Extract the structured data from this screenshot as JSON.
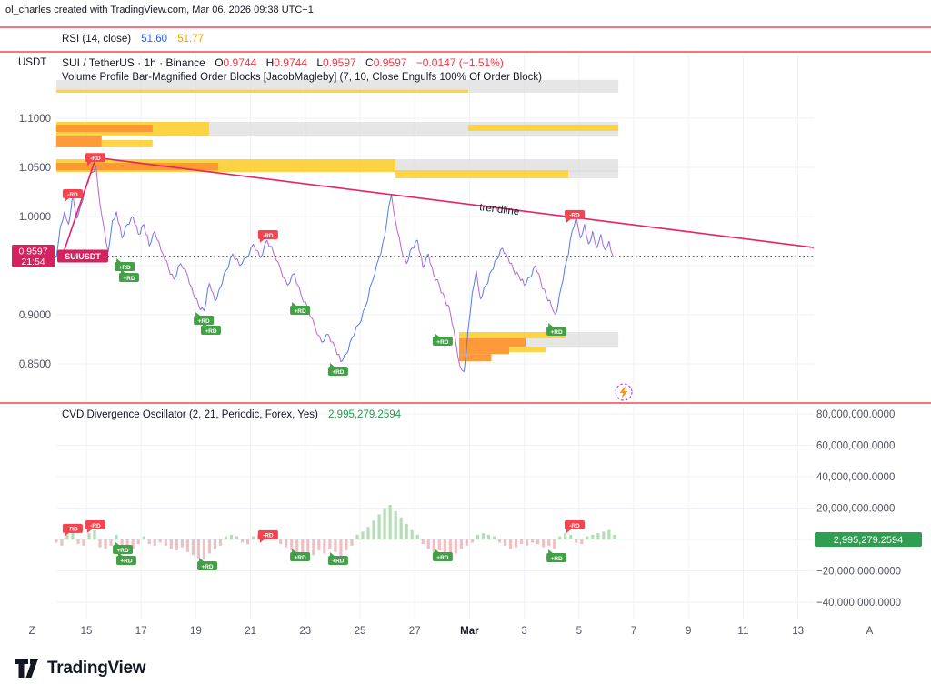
{
  "attribution": "ol_charles created with TradingView.com, Mar 06, 2026 09:38 UTC+1",
  "rsi": {
    "label": "RSI (14, close)",
    "value_main": "51.60",
    "value_signal": "51.77",
    "color_main": "#2962ff",
    "color_signal": "#f0a000"
  },
  "header": {
    "price_scale_currency": "USDT",
    "symbol_title": "SUI / TetherUS · 1h · Binance",
    "ohlc": {
      "o_label": "O",
      "o": "0.9744",
      "h_label": "H",
      "h": "0.9744",
      "l_label": "L",
      "l": "0.9597",
      "c_label": "C",
      "c": "0.9597",
      "change": "−0.0147 (−1.51%)"
    },
    "down_color": "#f23645"
  },
  "volume_profile_label": "Volume Profile Bar-Magnified Order Blocks [JacobMagleby] (7, 10, Close Engulfs 100% Of Order Block)",
  "cvd_legend": {
    "label": "CVD Divergence Oscillator (2, 21, Periodic, Forex, Yes)",
    "value": "2,995,279.2594",
    "value_color": "#1e9e4a"
  },
  "logo": {
    "text": "TradingView"
  },
  "chart_data": {
    "type": "candlestick",
    "title": "SUI/TetherUS 1h with Volume Profile Order Blocks and CVD Divergence Oscillator",
    "price_pane": {
      "ylim": [
        0.83,
        1.145
      ],
      "ylabel_values": [
        {
          "p": 1.1,
          "label": "1.1000"
        },
        {
          "p": 1.05,
          "label": "1.0500"
        },
        {
          "p": 1.0,
          "label": "1.0000"
        },
        {
          "p": 0.9,
          "label": "0.9000"
        },
        {
          "p": 0.85,
          "label": "0.8500"
        }
      ],
      "grid_prices": [
        1.1,
        1.05,
        1.0,
        0.95,
        0.9,
        0.85
      ],
      "current_price": {
        "value": "0.9597",
        "countdown": "21:54",
        "p": 0.9597,
        "color": "#d6215f",
        "symbol_tag": "SUIUSDT"
      },
      "up_color": "#4f7cf0",
      "down_color": "#bd63d3",
      "price_path": [
        [
          13.9,
          0.958
        ],
        [
          14.05,
          0.99
        ],
        [
          14.2,
          1.005
        ],
        [
          14.35,
          0.992
        ],
        [
          14.5,
          1.023
        ],
        [
          14.65,
          0.998
        ],
        [
          14.8,
          1.012
        ],
        [
          15.0,
          1.032
        ],
        [
          15.2,
          1.045
        ],
        [
          15.35,
          1.052
        ],
        [
          15.5,
          1.012
        ],
        [
          15.65,
          0.988
        ],
        [
          15.8,
          0.964
        ],
        [
          15.95,
          0.996
        ],
        [
          16.1,
          1.005
        ],
        [
          16.3,
          0.978
        ],
        [
          16.5,
          0.992
        ],
        [
          16.7,
          1.0
        ],
        [
          16.9,
          0.982
        ],
        [
          17.1,
          0.992
        ],
        [
          17.3,
          0.97
        ],
        [
          17.5,
          0.985
        ],
        [
          17.8,
          0.962
        ],
        [
          18.0,
          0.948
        ],
        [
          18.2,
          0.936
        ],
        [
          18.45,
          0.952
        ],
        [
          18.7,
          0.94
        ],
        [
          18.9,
          0.922
        ],
        [
          19.1,
          0.91
        ],
        [
          19.3,
          0.904
        ],
        [
          19.5,
          0.932
        ],
        [
          19.7,
          0.914
        ],
        [
          19.9,
          0.928
        ],
        [
          20.1,
          0.945
        ],
        [
          20.35,
          0.962
        ],
        [
          20.6,
          0.95
        ],
        [
          20.85,
          0.958
        ],
        [
          21.1,
          0.972
        ],
        [
          21.35,
          0.958
        ],
        [
          21.6,
          0.976
        ],
        [
          21.85,
          0.962
        ],
        [
          22.1,
          0.946
        ],
        [
          22.35,
          0.93
        ],
        [
          22.6,
          0.942
        ],
        [
          22.85,
          0.92
        ],
        [
          23.1,
          0.905
        ],
        [
          23.35,
          0.888
        ],
        [
          23.6,
          0.872
        ],
        [
          23.85,
          0.88
        ],
        [
          24.1,
          0.866
        ],
        [
          24.3,
          0.852
        ],
        [
          24.5,
          0.86
        ],
        [
          24.7,
          0.876
        ],
        [
          24.95,
          0.89
        ],
        [
          25.2,
          0.908
        ],
        [
          25.45,
          0.934
        ],
        [
          25.7,
          0.958
        ],
        [
          25.9,
          0.98
        ],
        [
          26.05,
          1.01
        ],
        [
          26.15,
          1.022
        ],
        [
          26.3,
          0.995
        ],
        [
          26.5,
          0.968
        ],
        [
          26.7,
          0.952
        ],
        [
          26.9,
          0.968
        ],
        [
          27.1,
          0.976
        ],
        [
          27.3,
          0.948
        ],
        [
          27.5,
          0.962
        ],
        [
          27.7,
          0.94
        ],
        [
          27.9,
          0.93
        ],
        [
          28.1,
          0.916
        ],
        [
          28.3,
          0.902
        ],
        [
          28.5,
          0.872
        ],
        [
          28.65,
          0.848
        ],
        [
          28.8,
          0.842
        ],
        [
          28.95,
          0.885
        ],
        [
          29.1,
          0.922
        ],
        [
          29.25,
          0.945
        ],
        [
          29.4,
          0.916
        ],
        [
          29.6,
          0.93
        ],
        [
          29.8,
          0.945
        ],
        [
          30.0,
          0.956
        ],
        [
          30.2,
          0.968
        ],
        [
          30.4,
          0.958
        ],
        [
          30.6,
          0.946
        ],
        [
          30.8,
          0.94
        ],
        [
          31.0,
          0.93
        ],
        [
          31.2,
          0.938
        ],
        [
          31.4,
          0.95
        ],
        [
          31.6,
          0.934
        ],
        [
          31.8,
          0.92
        ],
        [
          32.0,
          0.908
        ],
        [
          32.15,
          0.9
        ],
        [
          32.35,
          0.928
        ],
        [
          32.55,
          0.955
        ],
        [
          32.75,
          0.985
        ],
        [
          32.9,
          1.0
        ],
        [
          33.05,
          0.978
        ],
        [
          33.2,
          0.992
        ],
        [
          33.35,
          0.972
        ],
        [
          33.5,
          0.985
        ],
        [
          33.65,
          0.968
        ],
        [
          33.8,
          0.982
        ],
        [
          33.95,
          0.966
        ],
        [
          34.1,
          0.975
        ],
        [
          34.25,
          0.9597
        ]
      ],
      "block_colors": {
        "gray": "#d9d9d9",
        "yellow": "#ffcf33",
        "orange": "#ff9532"
      },
      "order_blocks": [
        [
          1.139,
          1.126,
          13.9,
          34.44,
          "gray"
        ],
        [
          1.129,
          1.126,
          13.9,
          28.95,
          "yellow"
        ],
        [
          1.0963,
          1.0824,
          13.9,
          34.44,
          "gray"
        ],
        [
          1.0963,
          1.0824,
          13.9,
          19.49,
          "yellow"
        ],
        [
          1.0935,
          1.0861,
          13.9,
          17.42,
          "orange"
        ],
        [
          1.0935,
          1.087,
          28.95,
          34.44,
          "yellow"
        ],
        [
          1.0815,
          1.0704,
          13.9,
          15.56,
          "orange"
        ],
        [
          1.0778,
          1.0704,
          15.56,
          17.42,
          "yellow"
        ],
        [
          1.0583,
          1.0454,
          13.9,
          34.44,
          "gray"
        ],
        [
          1.0583,
          1.0454,
          13.9,
          26.3,
          "yellow"
        ],
        [
          1.0546,
          1.0472,
          13.9,
          19.82,
          "orange"
        ],
        [
          1.0472,
          1.0389,
          26.3,
          32.61,
          "yellow"
        ],
        [
          1.0472,
          1.0389,
          32.61,
          34.44,
          "gray"
        ],
        [
          0.8824,
          0.876,
          28.62,
          34.44,
          "gray"
        ],
        [
          0.8824,
          0.876,
          28.62,
          32.51,
          "yellow"
        ],
        [
          0.876,
          0.8676,
          28.62,
          34.44,
          "gray"
        ],
        [
          0.876,
          0.8676,
          28.62,
          31.05,
          "orange"
        ],
        [
          0.8676,
          0.86,
          28.62,
          30.45,
          "orange"
        ],
        [
          0.8676,
          0.862,
          30.45,
          31.78,
          "yellow"
        ],
        [
          0.86,
          0.8527,
          28.62,
          29.8,
          "orange"
        ]
      ],
      "trendline": {
        "points": [
          [
            14.1,
            0.958
          ],
          [
            15.35,
            1.06
          ],
          [
            41.58,
            0.9685
          ]
        ],
        "label": "trendline",
        "color": "#e8216a"
      },
      "badges": [
        {
          "d": 14.5,
          "p": 1.0231,
          "t": "-RD"
        },
        {
          "d": 15.33,
          "p": 1.06,
          "t": "-RD"
        },
        {
          "d": 21.64,
          "p": 0.9815,
          "t": "-RD"
        },
        {
          "d": 32.84,
          "p": 1.002,
          "t": "-RD"
        },
        {
          "d": 16.4,
          "p": 0.9491,
          "t": "+RD"
        },
        {
          "d": 16.56,
          "p": 0.938,
          "t": "+RD"
        },
        {
          "d": 19.29,
          "p": 0.8944,
          "t": "+RD"
        },
        {
          "d": 19.55,
          "p": 0.8843,
          "t": "+RD"
        },
        {
          "d": 22.81,
          "p": 0.9046,
          "t": "+RD"
        },
        {
          "d": 24.2,
          "p": 0.8426,
          "t": "+RD"
        },
        {
          "d": 28.02,
          "p": 0.8731,
          "t": "+RD"
        },
        {
          "d": 32.18,
          "p": 0.8833,
          "t": "+RD"
        }
      ]
    },
    "cvd_pane": {
      "type": "bar",
      "unit": "millions",
      "axis": [
        {
          "v": 80,
          "label": "80,000,000.0000"
        },
        {
          "v": 60,
          "label": "60,000,000.0000"
        },
        {
          "v": 40,
          "label": "40,000,000.0000"
        },
        {
          "v": 20,
          "label": "20,000,000.0000"
        },
        {
          "v": -20,
          "label": "−20,000,000.0000"
        },
        {
          "v": -40,
          "label": "−40,000,000.0000"
        }
      ],
      "zero_badge": {
        "label": "2,995,279.2594",
        "bg": "#2e9e50"
      },
      "start_day": 13.9,
      "step_day": 0.2,
      "pos_color": "#b5dcb7",
      "neg_color": "#f0bfc3",
      "values_millions": [
        -2,
        -4,
        3,
        5,
        -3,
        -4,
        4,
        6,
        -5,
        -6,
        -4,
        3,
        -5,
        -8,
        -6,
        -3,
        2,
        -3,
        -4,
        -2,
        -4,
        -6,
        -7,
        -5,
        -8,
        -10,
        -12,
        -13,
        -9,
        -6,
        -4,
        2,
        3,
        2,
        -2,
        -3,
        2,
        3,
        2,
        4,
        2,
        -3,
        -5,
        -7,
        -9,
        -11,
        -8,
        -10,
        -7,
        -9,
        -6,
        -8,
        -11,
        -7,
        -4,
        3,
        5,
        8,
        12,
        16,
        20,
        22,
        18,
        14,
        10,
        6,
        3,
        -3,
        -6,
        -8,
        -7,
        -10,
        -12,
        -9,
        -6,
        -4,
        -2,
        3,
        4,
        3,
        2,
        -2,
        -4,
        -6,
        -5,
        -3,
        -4,
        -2,
        -3,
        -5,
        -4,
        -6,
        2,
        4,
        3,
        -2,
        -3,
        2,
        3,
        4,
        5,
        6,
        3
      ],
      "badges": [
        {
          "d": 14.5,
          "v": 7.0,
          "t": "-RD"
        },
        {
          "d": 15.33,
          "v": 9.3,
          "t": "-RD"
        },
        {
          "d": 21.64,
          "v": 3.0,
          "t": "-RD"
        },
        {
          "d": 32.84,
          "v": 9.3,
          "t": "-RD"
        },
        {
          "d": 16.33,
          "v": -6.4,
          "t": "+RD"
        },
        {
          "d": 16.46,
          "v": -13.3,
          "t": "+RD"
        },
        {
          "d": 19.42,
          "v": -16.8,
          "t": "+RD"
        },
        {
          "d": 22.81,
          "v": -11.0,
          "t": "+RD"
        },
        {
          "d": 24.2,
          "v": -13.3,
          "t": "+RD"
        },
        {
          "d": 28.02,
          "v": -11.0,
          "t": "+RD"
        },
        {
          "d": 32.18,
          "v": -11.6,
          "t": "+RD"
        }
      ]
    },
    "x_axis": {
      "ticks": [
        {
          "label": "Z",
          "d": 13.01,
          "grid": false
        },
        {
          "label": "15",
          "d": 15,
          "grid": true
        },
        {
          "label": "17",
          "d": 17,
          "grid": true
        },
        {
          "label": "19",
          "d": 19,
          "grid": true
        },
        {
          "label": "21",
          "d": 21,
          "grid": true
        },
        {
          "label": "23",
          "d": 23,
          "grid": true
        },
        {
          "label": "25",
          "d": 25,
          "grid": true
        },
        {
          "label": "27",
          "d": 27,
          "grid": true
        },
        {
          "label": "Mar",
          "d": 29,
          "grid": true,
          "bold": true
        },
        {
          "label": "3",
          "d": 31,
          "grid": true
        },
        {
          "label": "5",
          "d": 33,
          "grid": true
        },
        {
          "label": "7",
          "d": 35,
          "grid": true
        },
        {
          "label": "9",
          "d": 37,
          "grid": true
        },
        {
          "label": "11",
          "d": 39,
          "grid": true
        },
        {
          "label": "13",
          "d": 41,
          "grid": true
        },
        {
          "label": "A",
          "d": 43.62,
          "grid": false
        }
      ]
    }
  }
}
